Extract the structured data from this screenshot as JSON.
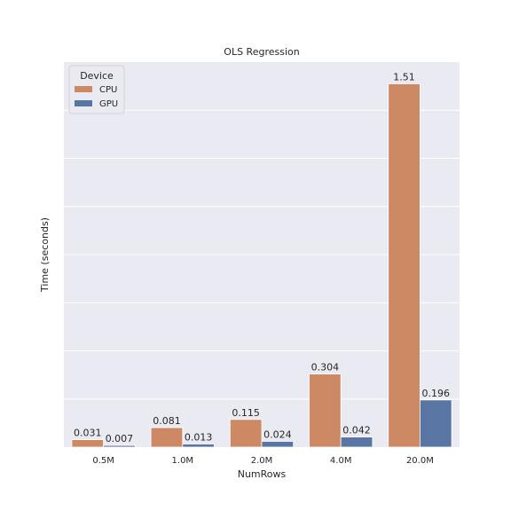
{
  "chart_data": {
    "type": "bar",
    "title": "OLS Regression",
    "xlabel": "NumRows",
    "ylabel": "Time (seconds)",
    "categories": [
      "0.5M",
      "1.0M",
      "2.0M",
      "4.0M",
      "20.0M"
    ],
    "series": [
      {
        "name": "CPU",
        "color": "#cc8963",
        "values": [
          0.031,
          0.081,
          0.115,
          0.304,
          1.51
        ],
        "labels": [
          "0.031",
          "0.081",
          "0.115",
          "0.304",
          "1.51"
        ]
      },
      {
        "name": "GPU",
        "color": "#5975a4",
        "values": [
          0.007,
          0.013,
          0.024,
          0.042,
          0.196
        ],
        "labels": [
          "0.007",
          "0.013",
          "0.024",
          "0.042",
          "0.196"
        ]
      }
    ],
    "ylim": [
      0,
      1.6
    ],
    "grid": true,
    "legend": {
      "title": "Device",
      "placement": "top-left"
    },
    "background": "#eaeaf2"
  }
}
